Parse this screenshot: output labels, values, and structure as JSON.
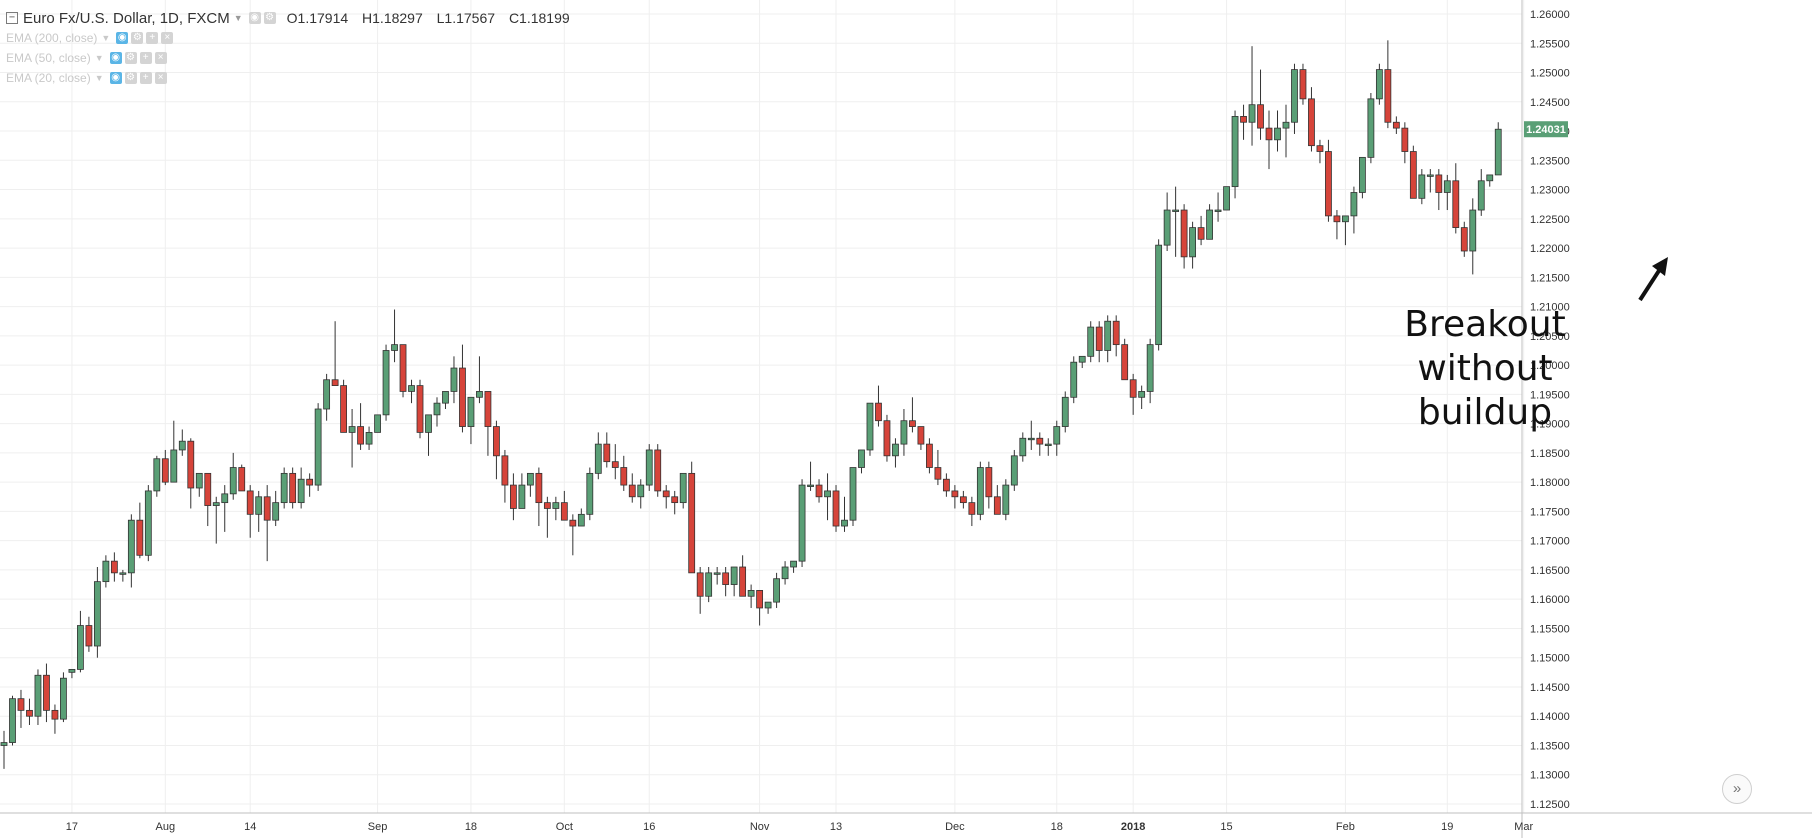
{
  "header": {
    "symbol": "Euro Fx/U.S. Dollar, 1D, FXCM",
    "ohlc": {
      "open": "O1.17914",
      "high": "H1.18297",
      "low": "L1.17567",
      "close": "C1.18199"
    },
    "collapse_icon": "minus-box-icon"
  },
  "indicators": [
    {
      "label": "EMA (200, close)"
    },
    {
      "label": "EMA (50, close)"
    },
    {
      "label": "EMA (20, close)"
    }
  ],
  "annotation": {
    "line1": "Breakout without",
    "line2": "buildup",
    "arrow": "arrow-up-right"
  },
  "controls": {
    "scroll_button": "»"
  },
  "colors": {
    "up": "#5a9f76",
    "down": "#d6443a",
    "price_label_bg": "#5a9f76",
    "grid": "#efefef"
  },
  "chart_data": {
    "type": "candlestick",
    "ylim": [
      1.125,
      1.26
    ],
    "y_ticks": [
      "1.12500",
      "1.13000",
      "1.13500",
      "1.14000",
      "1.14500",
      "1.15000",
      "1.15500",
      "1.16000",
      "1.16500",
      "1.17000",
      "1.17500",
      "1.18000",
      "1.18500",
      "1.19000",
      "1.19500",
      "1.20000",
      "1.20500",
      "1.21000",
      "1.21500",
      "1.22000",
      "1.22500",
      "1.23000",
      "1.23500",
      "1.24000",
      "1.24500",
      "1.25000",
      "1.25500",
      "1.26000"
    ],
    "x_labels": [
      {
        "label": "17",
        "index": 8
      },
      {
        "label": "Aug",
        "index": 19
      },
      {
        "label": "14",
        "index": 29
      },
      {
        "label": "Sep",
        "index": 44
      },
      {
        "label": "18",
        "index": 55
      },
      {
        "label": "Oct",
        "index": 66
      },
      {
        "label": "16",
        "index": 76
      },
      {
        "label": "Nov",
        "index": 89
      },
      {
        "label": "13",
        "index": 98
      },
      {
        "label": "Dec",
        "index": 112
      },
      {
        "label": "18",
        "index": 124
      },
      {
        "label": "2018",
        "index": 133
      },
      {
        "label": "15",
        "index": 144
      },
      {
        "label": "Feb",
        "index": 158
      },
      {
        "label": "19",
        "index": 170
      },
      {
        "label": "Mar",
        "index": 179
      }
    ],
    "last_price": "1.24031",
    "candles": [
      [
        1.135,
        1.1375,
        1.131,
        1.1355
      ],
      [
        1.1355,
        1.1435,
        1.135,
        1.143
      ],
      [
        1.143,
        1.1445,
        1.138,
        1.141
      ],
      [
        1.141,
        1.143,
        1.1385,
        1.14
      ],
      [
        1.14,
        1.148,
        1.1385,
        1.147
      ],
      [
        1.147,
        1.149,
        1.139,
        1.141
      ],
      [
        1.141,
        1.142,
        1.137,
        1.1395
      ],
      [
        1.1395,
        1.1475,
        1.139,
        1.1465
      ],
      [
        1.1475,
        1.148,
        1.1465,
        1.148
      ],
      [
        1.148,
        1.158,
        1.1475,
        1.1555
      ],
      [
        1.1555,
        1.157,
        1.151,
        1.152
      ],
      [
        1.152,
        1.1655,
        1.15,
        1.163
      ],
      [
        1.163,
        1.1675,
        1.162,
        1.1665
      ],
      [
        1.1665,
        1.168,
        1.163,
        1.1645
      ],
      [
        1.1645,
        1.165,
        1.163,
        1.1645
      ],
      [
        1.1645,
        1.1745,
        1.162,
        1.1735
      ],
      [
        1.1735,
        1.1765,
        1.167,
        1.1675
      ],
      [
        1.1675,
        1.1795,
        1.1665,
        1.1785
      ],
      [
        1.1785,
        1.1845,
        1.1775,
        1.184
      ],
      [
        1.184,
        1.1855,
        1.1795,
        1.18
      ],
      [
        1.18,
        1.1905,
        1.18,
        1.1855
      ],
      [
        1.1855,
        1.189,
        1.1845,
        1.187
      ],
      [
        1.187,
        1.1875,
        1.1755,
        1.179
      ],
      [
        1.179,
        1.1815,
        1.1775,
        1.1815
      ],
      [
        1.1815,
        1.1815,
        1.1725,
        1.176
      ],
      [
        1.176,
        1.1775,
        1.1695,
        1.1765
      ],
      [
        1.1765,
        1.1795,
        1.1715,
        1.178
      ],
      [
        1.178,
        1.185,
        1.177,
        1.1825
      ],
      [
        1.1825,
        1.183,
        1.1785,
        1.1785
      ],
      [
        1.1785,
        1.1795,
        1.1705,
        1.1745
      ],
      [
        1.1745,
        1.1785,
        1.1715,
        1.1775
      ],
      [
        1.1775,
        1.1795,
        1.1665,
        1.1735
      ],
      [
        1.1735,
        1.1785,
        1.1725,
        1.1765
      ],
      [
        1.1765,
        1.1825,
        1.1755,
        1.1815
      ],
      [
        1.1815,
        1.1825,
        1.1755,
        1.1765
      ],
      [
        1.1765,
        1.1825,
        1.1755,
        1.1805
      ],
      [
        1.1805,
        1.1815,
        1.1775,
        1.1795
      ],
      [
        1.1795,
        1.1935,
        1.1785,
        1.1925
      ],
      [
        1.1925,
        1.1985,
        1.1905,
        1.1975
      ],
      [
        1.1975,
        1.2075,
        1.1965,
        1.1965
      ],
      [
        1.1965,
        1.1975,
        1.1885,
        1.1885
      ],
      [
        1.1885,
        1.1925,
        1.1825,
        1.1895
      ],
      [
        1.1895,
        1.1935,
        1.1855,
        1.1865
      ],
      [
        1.1865,
        1.1895,
        1.1855,
        1.1885
      ],
      [
        1.1885,
        1.1915,
        1.1885,
        1.1915
      ],
      [
        1.1915,
        1.2035,
        1.1905,
        1.2025
      ],
      [
        1.2025,
        1.2095,
        1.2005,
        1.2035
      ],
      [
        1.2035,
        1.2035,
        1.1945,
        1.1955
      ],
      [
        1.1955,
        1.1975,
        1.1935,
        1.1965
      ],
      [
        1.1965,
        1.1975,
        1.1875,
        1.1885
      ],
      [
        1.1885,
        1.1915,
        1.1845,
        1.1915
      ],
      [
        1.1915,
        1.1945,
        1.1895,
        1.1935
      ],
      [
        1.1935,
        1.1955,
        1.1925,
        1.1955
      ],
      [
        1.1955,
        1.2015,
        1.1935,
        1.1995
      ],
      [
        1.1995,
        1.2035,
        1.1885,
        1.1895
      ],
      [
        1.1895,
        1.1945,
        1.1865,
        1.1945
      ],
      [
        1.1945,
        1.2015,
        1.1935,
        1.1955
      ],
      [
        1.1955,
        1.1955,
        1.1845,
        1.1895
      ],
      [
        1.1895,
        1.1905,
        1.1805,
        1.1845
      ],
      [
        1.1845,
        1.1855,
        1.1765,
        1.1795
      ],
      [
        1.1795,
        1.1815,
        1.1735,
        1.1755
      ],
      [
        1.1755,
        1.1815,
        1.1755,
        1.1795
      ],
      [
        1.1795,
        1.1815,
        1.1775,
        1.1815
      ],
      [
        1.1815,
        1.1825,
        1.1725,
        1.1765
      ],
      [
        1.1765,
        1.1775,
        1.1705,
        1.1755
      ],
      [
        1.1755,
        1.1775,
        1.1735,
        1.1765
      ],
      [
        1.1765,
        1.1785,
        1.1735,
        1.1735
      ],
      [
        1.1735,
        1.1745,
        1.1675,
        1.1725
      ],
      [
        1.1725,
        1.1755,
        1.1725,
        1.1745
      ],
      [
        1.1745,
        1.1825,
        1.1735,
        1.1815
      ],
      [
        1.1815,
        1.1885,
        1.1805,
        1.1865
      ],
      [
        1.1865,
        1.1885,
        1.1825,
        1.1835
      ],
      [
        1.1835,
        1.1865,
        1.1805,
        1.1825
      ],
      [
        1.1825,
        1.1845,
        1.1785,
        1.1795
      ],
      [
        1.1795,
        1.1815,
        1.1765,
        1.1775
      ],
      [
        1.1775,
        1.1805,
        1.1755,
        1.1795
      ],
      [
        1.1795,
        1.1865,
        1.1785,
        1.1855
      ],
      [
        1.1855,
        1.1865,
        1.1775,
        1.1785
      ],
      [
        1.1785,
        1.1795,
        1.1755,
        1.1775
      ],
      [
        1.1775,
        1.1785,
        1.1745,
        1.1765
      ],
      [
        1.1765,
        1.1815,
        1.1755,
        1.1815
      ],
      [
        1.1815,
        1.1835,
        1.1645,
        1.1645
      ],
      [
        1.1645,
        1.1655,
        1.1575,
        1.1605
      ],
      [
        1.1605,
        1.1655,
        1.1595,
        1.1645
      ],
      [
        1.1645,
        1.1655,
        1.1625,
        1.1645
      ],
      [
        1.1645,
        1.1655,
        1.1605,
        1.1625
      ],
      [
        1.1625,
        1.1655,
        1.1605,
        1.1655
      ],
      [
        1.1655,
        1.1675,
        1.1605,
        1.1605
      ],
      [
        1.1605,
        1.1625,
        1.1585,
        1.1615
      ],
      [
        1.1615,
        1.1615,
        1.1555,
        1.1585
      ],
      [
        1.1585,
        1.1595,
        1.1575,
        1.1595
      ],
      [
        1.1595,
        1.1645,
        1.1585,
        1.1635
      ],
      [
        1.1635,
        1.1665,
        1.1625,
        1.1655
      ],
      [
        1.1655,
        1.1665,
        1.1645,
        1.1665
      ],
      [
        1.1665,
        1.1805,
        1.1655,
        1.1795
      ],
      [
        1.1795,
        1.1835,
        1.1785,
        1.1795
      ],
      [
        1.1795,
        1.1805,
        1.1765,
        1.1775
      ],
      [
        1.1775,
        1.1815,
        1.1735,
        1.1785
      ],
      [
        1.1785,
        1.1795,
        1.1715,
        1.1725
      ],
      [
        1.1725,
        1.1775,
        1.1715,
        1.1735
      ],
      [
        1.1735,
        1.1825,
        1.1725,
        1.1825
      ],
      [
        1.1825,
        1.1855,
        1.1815,
        1.1855
      ],
      [
        1.1855,
        1.1935,
        1.1845,
        1.1935
      ],
      [
        1.1935,
        1.1965,
        1.1895,
        1.1905
      ],
      [
        1.1905,
        1.1915,
        1.1835,
        1.1845
      ],
      [
        1.1845,
        1.1875,
        1.1825,
        1.1865
      ],
      [
        1.1865,
        1.1925,
        1.1845,
        1.1905
      ],
      [
        1.1905,
        1.1945,
        1.1885,
        1.1895
      ],
      [
        1.1895,
        1.1895,
        1.1855,
        1.1865
      ],
      [
        1.1865,
        1.1875,
        1.1815,
        1.1825
      ],
      [
        1.1825,
        1.1855,
        1.1795,
        1.1805
      ],
      [
        1.1805,
        1.1815,
        1.1775,
        1.1785
      ],
      [
        1.1785,
        1.1795,
        1.1755,
        1.1775
      ],
      [
        1.1775,
        1.1785,
        1.1755,
        1.1765
      ],
      [
        1.1765,
        1.1775,
        1.1725,
        1.1745
      ],
      [
        1.1745,
        1.1835,
        1.1735,
        1.1825
      ],
      [
        1.1825,
        1.1835,
        1.1755,
        1.1775
      ],
      [
        1.1775,
        1.1795,
        1.1745,
        1.1745
      ],
      [
        1.1745,
        1.1805,
        1.1735,
        1.1795
      ],
      [
        1.1795,
        1.1855,
        1.1785,
        1.1845
      ],
      [
        1.1845,
        1.1885,
        1.1835,
        1.1875
      ],
      [
        1.1875,
        1.1905,
        1.1855,
        1.1875
      ],
      [
        1.1875,
        1.1885,
        1.1845,
        1.1865
      ],
      [
        1.1865,
        1.1875,
        1.1845,
        1.1865
      ],
      [
        1.1865,
        1.1905,
        1.1845,
        1.1895
      ],
      [
        1.1895,
        1.1955,
        1.1885,
        1.1945
      ],
      [
        1.1945,
        1.2015,
        1.1935,
        1.2005
      ],
      [
        1.2005,
        1.2015,
        1.1995,
        1.2015
      ],
      [
        1.2015,
        1.2075,
        1.2005,
        1.2065
      ],
      [
        1.2065,
        1.2075,
        1.2005,
        1.2025
      ],
      [
        1.2025,
        1.2085,
        1.2005,
        1.2075
      ],
      [
        1.2075,
        1.2085,
        1.2015,
        1.2035
      ],
      [
        1.2035,
        1.2045,
        1.1975,
        1.1975
      ],
      [
        1.1975,
        1.1985,
        1.1915,
        1.1945
      ],
      [
        1.1945,
        1.1965,
        1.1925,
        1.1955
      ],
      [
        1.1955,
        1.2045,
        1.1935,
        1.2035
      ],
      [
        1.2035,
        1.2215,
        1.2025,
        1.2205
      ],
      [
        1.2205,
        1.2295,
        1.2195,
        1.2265
      ],
      [
        1.2265,
        1.2305,
        1.2185,
        1.2265
      ],
      [
        1.2265,
        1.2275,
        1.2165,
        1.2185
      ],
      [
        1.2185,
        1.2245,
        1.2165,
        1.2235
      ],
      [
        1.2235,
        1.2255,
        1.2205,
        1.2215
      ],
      [
        1.2215,
        1.2275,
        1.2215,
        1.2265
      ],
      [
        1.2265,
        1.2295,
        1.2245,
        1.2265
      ],
      [
        1.2265,
        1.2305,
        1.2265,
        1.2305
      ],
      [
        1.2305,
        1.2435,
        1.2285,
        1.2425
      ],
      [
        1.2425,
        1.2445,
        1.2385,
        1.2415
      ],
      [
        1.2415,
        1.2545,
        1.2375,
        1.2445
      ],
      [
        1.2445,
        1.2505,
        1.2385,
        1.2405
      ],
      [
        1.2405,
        1.2435,
        1.2335,
        1.2385
      ],
      [
        1.2385,
        1.2435,
        1.2365,
        1.2405
      ],
      [
        1.2405,
        1.2445,
        1.2355,
        1.2415
      ],
      [
        1.2415,
        1.2515,
        1.2395,
        1.2505
      ],
      [
        1.2505,
        1.2515,
        1.2445,
        1.2455
      ],
      [
        1.2455,
        1.2475,
        1.2365,
        1.2375
      ],
      [
        1.2375,
        1.2385,
        1.2345,
        1.2365
      ],
      [
        1.2365,
        1.2385,
        1.2245,
        1.2255
      ],
      [
        1.2255,
        1.2265,
        1.2215,
        1.2245
      ],
      [
        1.2245,
        1.2255,
        1.2205,
        1.2255
      ],
      [
        1.2255,
        1.2305,
        1.2225,
        1.2295
      ],
      [
        1.2295,
        1.2355,
        1.2285,
        1.2355
      ],
      [
        1.2355,
        1.2465,
        1.2345,
        1.2455
      ],
      [
        1.2455,
        1.2515,
        1.2445,
        1.2505
      ],
      [
        1.2505,
        1.2555,
        1.2405,
        1.2415
      ],
      [
        1.2415,
        1.2425,
        1.2395,
        1.2405
      ],
      [
        1.2405,
        1.2415,
        1.2345,
        1.2365
      ],
      [
        1.2365,
        1.2375,
        1.2285,
        1.2285
      ],
      [
        1.2285,
        1.2335,
        1.2275,
        1.2325
      ],
      [
        1.2325,
        1.2335,
        1.2295,
        1.2325
      ],
      [
        1.2325,
        1.2335,
        1.2265,
        1.2295
      ],
      [
        1.2295,
        1.2325,
        1.2265,
        1.2315
      ],
      [
        1.2315,
        1.2345,
        1.2225,
        1.2235
      ],
      [
        1.2235,
        1.2245,
        1.2185,
        1.2195
      ],
      [
        1.2195,
        1.2285,
        1.2155,
        1.2265
      ],
      [
        1.2265,
        1.2335,
        1.2255,
        1.2315
      ],
      [
        1.2315,
        1.2325,
        1.2305,
        1.2325
      ],
      [
        1.2325,
        1.2415,
        1.2325,
        1.24031
      ]
    ]
  }
}
